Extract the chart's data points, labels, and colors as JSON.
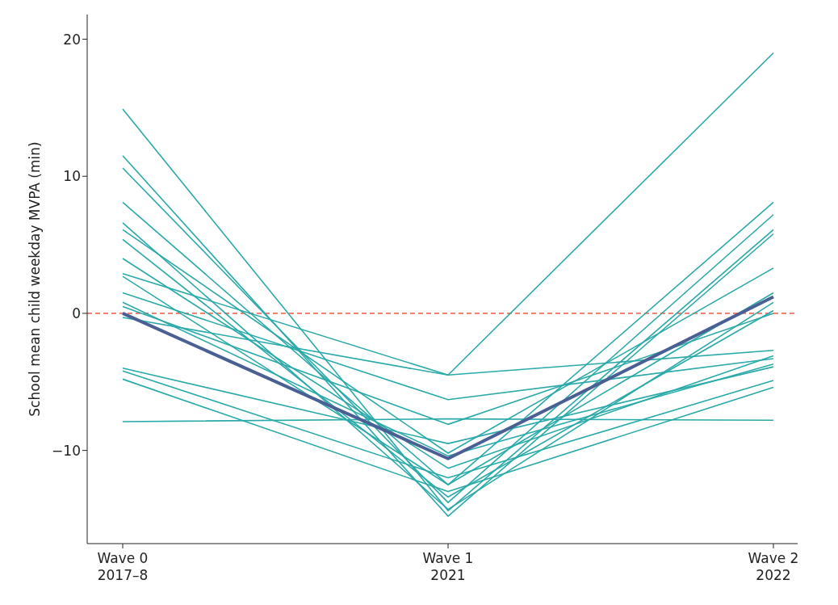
{
  "chart_data": {
    "type": "line",
    "ylabel": "School mean child weekday MVPA (min)",
    "categories": [
      "Wave 0\n2017–8",
      "Wave 1\n2021",
      "Wave 2\n2022"
    ],
    "ylim": [
      -16.8,
      21.8
    ],
    "yticks": [
      {
        "value": -10,
        "label": "−10"
      },
      0,
      10,
      20
    ],
    "grid": false,
    "marker": "none",
    "line_style": "solid",
    "ref_lines": [
      {
        "axis": "y",
        "value": 0,
        "color": "#f07060",
        "line_style": "dashed"
      }
    ],
    "series": [
      {
        "color": "#2aa9a9",
        "values": [
          14.9,
          -14.4,
          6.1
        ]
      },
      {
        "color": "#2aa9a9",
        "values": [
          11.5,
          -14.8,
          5.8
        ]
      },
      {
        "color": "#2aa9a9",
        "values": [
          10.6,
          -13.8,
          7.2
        ]
      },
      {
        "color": "#2aa9a9",
        "values": [
          8.1,
          -12.5,
          1.5
        ]
      },
      {
        "color": "#2aa9a9",
        "values": [
          6.6,
          -14.3,
          0.8
        ]
      },
      {
        "color": "#2aa9a9",
        "values": [
          6.1,
          -10.2,
          3.3
        ]
      },
      {
        "color": "#2aa9a9",
        "values": [
          5.4,
          -13.4,
          0.2
        ]
      },
      {
        "color": "#2aa9a9",
        "values": [
          4.0,
          -11.3,
          -3.1
        ]
      },
      {
        "color": "#2aa9a9",
        "values": [
          2.9,
          -4.5,
          19.0
        ]
      },
      {
        "color": "#2aa9a9",
        "values": [
          2.7,
          -12.5,
          8.1
        ]
      },
      {
        "color": "#2aa9a9",
        "values": [
          1.5,
          -6.3,
          -3.3
        ]
      },
      {
        "color": "#2aa9a9",
        "values": [
          0.8,
          -10.4,
          -3.7
        ]
      },
      {
        "color": "#2aa9a9",
        "values": [
          0.5,
          -8.1,
          0.0
        ]
      },
      {
        "color": "#2aa9a9",
        "values": [
          -0.3,
          -4.5,
          -2.7
        ]
      },
      {
        "color": "#2aa9a9",
        "values": [
          -4.0,
          -9.5,
          -3.9
        ]
      },
      {
        "color": "#2aa9a9",
        "values": [
          -4.2,
          -12.0,
          -4.9
        ]
      },
      {
        "color": "#2aa9a9",
        "values": [
          -4.8,
          -13.0,
          -5.4
        ]
      },
      {
        "color": "#2aa9a9",
        "values": [
          -7.9,
          -7.7,
          -7.8
        ]
      },
      {
        "color": "#4a5f94",
        "values": [
          0.0,
          -10.6,
          1.2
        ]
      }
    ]
  }
}
